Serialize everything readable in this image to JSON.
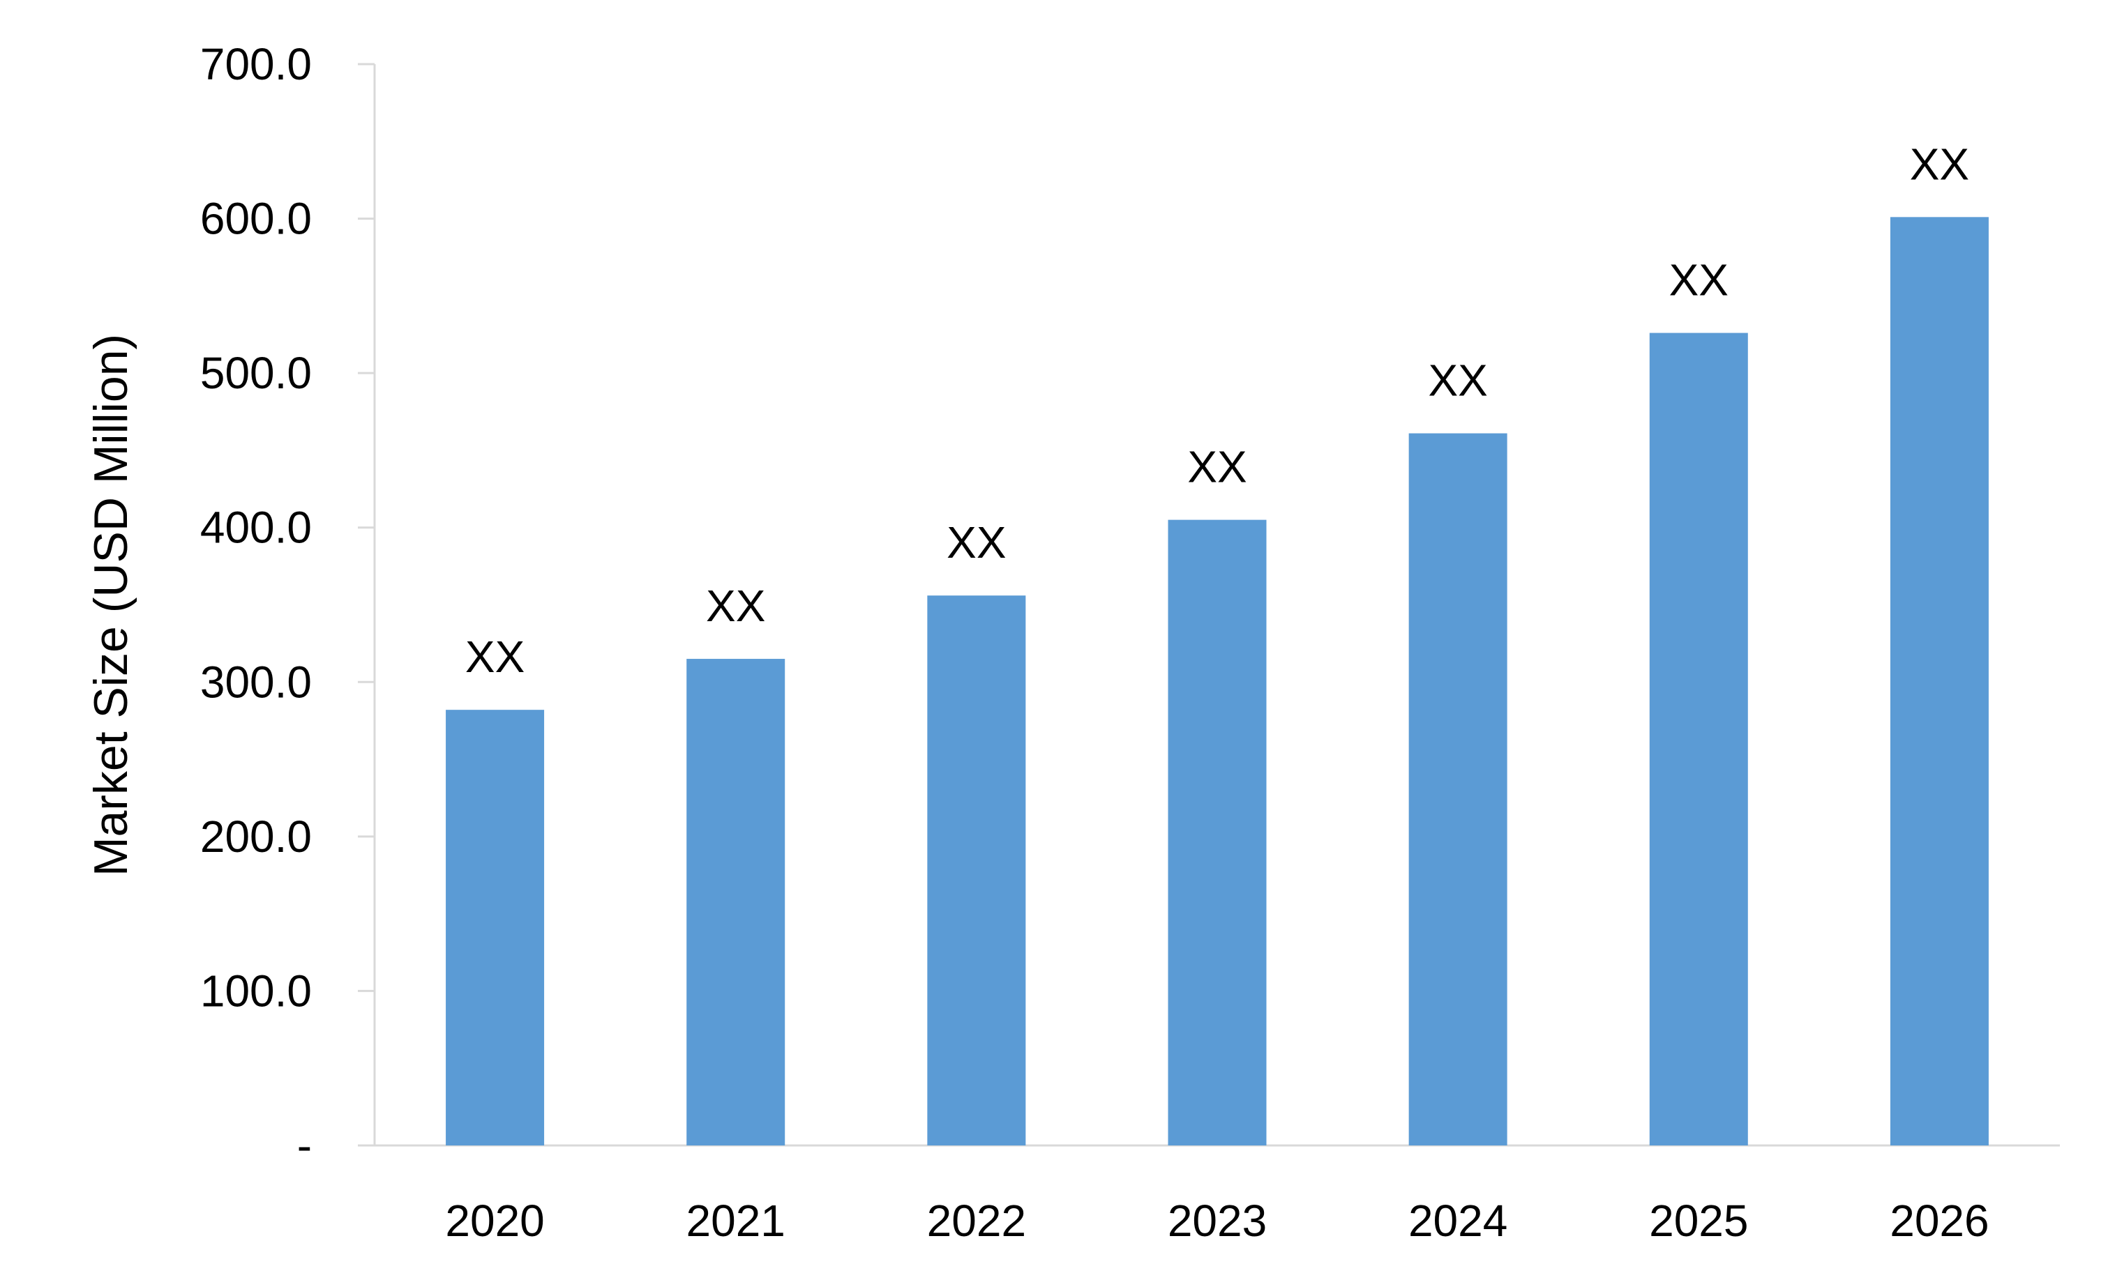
{
  "chart_data": {
    "type": "bar",
    "title": "",
    "xlabel": "",
    "ylabel": "Market Size (USD Million)",
    "categories": [
      "2020",
      "2021",
      "2022",
      "2023",
      "2024",
      "2025",
      "2026"
    ],
    "values": [
      282,
      315,
      356,
      405,
      461,
      526,
      601
    ],
    "data_labels": [
      "XX",
      "XX",
      "XX",
      "XX",
      "XX",
      "XX",
      "XX"
    ],
    "y_ticks": [
      "-",
      "100.0",
      "200.0",
      "300.0",
      "400.0",
      "500.0",
      "600.0",
      "700.0"
    ],
    "y_tick_values": [
      0,
      100,
      200,
      300,
      400,
      500,
      600,
      700
    ],
    "ylim": [
      0,
      700
    ],
    "grid": false,
    "legend": "none",
    "colors": {
      "bar": "#5b9bd5",
      "axis": "#d9d9d9",
      "text": "#000000"
    }
  }
}
